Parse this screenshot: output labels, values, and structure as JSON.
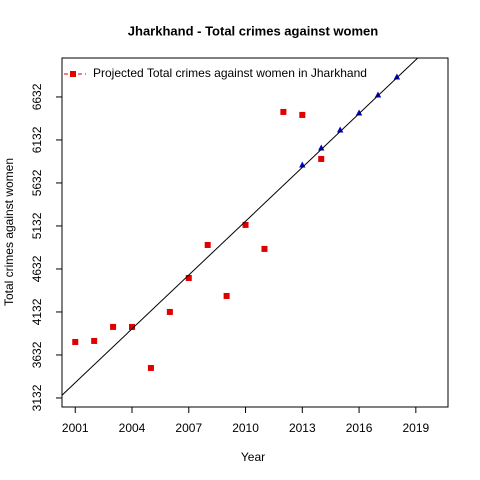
{
  "chart_data": {
    "type": "scatter",
    "title": "Jharkhand  -  Total crimes against women",
    "xlabel": "Year",
    "ylabel": "Total crimes against women",
    "xlim": [
      2000.3,
      2020.7
    ],
    "ylim": [
      3027,
      7085
    ],
    "xticks": [
      2001,
      2004,
      2007,
      2010,
      2013,
      2016,
      2019
    ],
    "yticks": [
      3132,
      3632,
      4132,
      4632,
      5132,
      5632,
      6132,
      6632
    ],
    "legend": "top-left",
    "series": [
      {
        "name": "Projected  Total crimes against women  in  Jharkhand",
        "color": "#e00000",
        "marker": "square",
        "x": [
          2001,
          2002,
          2003,
          2004,
          2005,
          2006,
          2007,
          2008,
          2009,
          2010,
          2011,
          2012,
          2013,
          2014
        ],
        "values": [
          3783,
          3795,
          3958,
          3958,
          3481,
          4132,
          4527,
          4911,
          4318,
          5144,
          4865,
          6458,
          6423,
          5911
        ]
      },
      {
        "color": "#0000cc",
        "marker": "triangle",
        "x": [
          2013,
          2014,
          2015,
          2016,
          2017,
          2018
        ],
        "values": [
          5841,
          6039,
          6248,
          6446,
          6655,
          6864
        ]
      },
      {
        "color": "#000000",
        "marker": "line",
        "x": [
          2000.3,
          2019.1
        ],
        "values": [
          3164,
          7085
        ]
      }
    ]
  }
}
